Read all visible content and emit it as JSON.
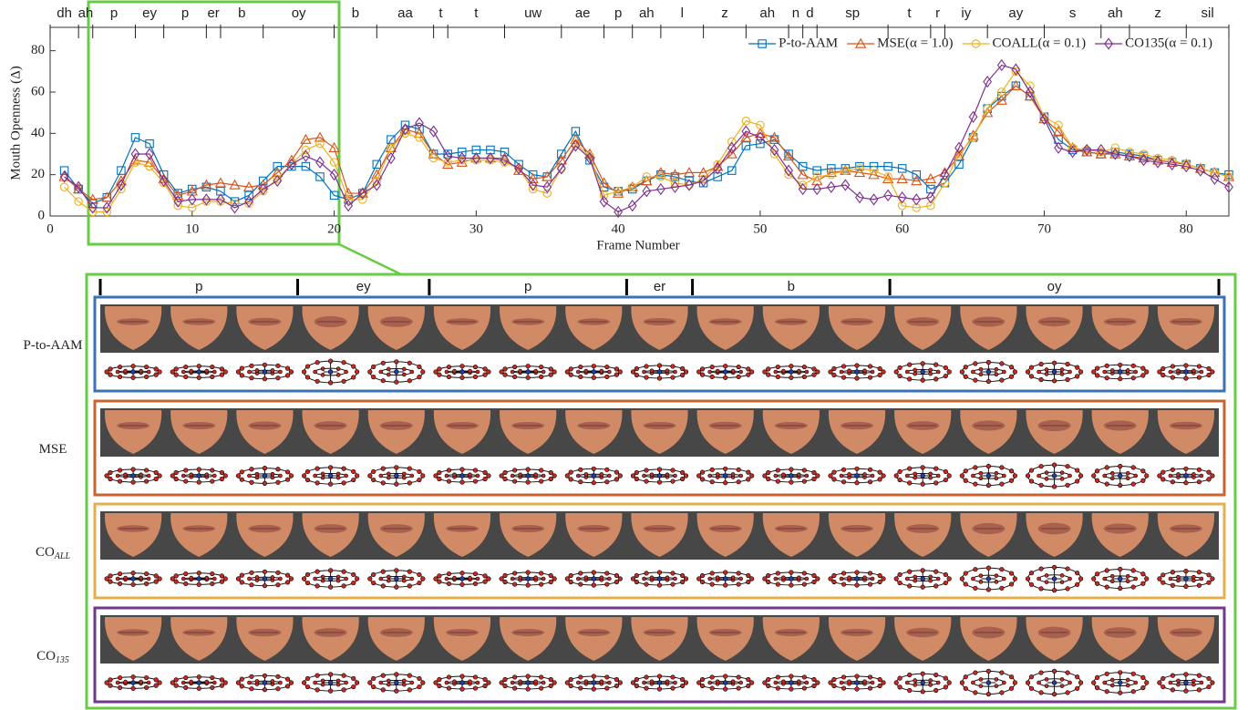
{
  "chart_data": {
    "type": "line",
    "xlabel": "Frame Number",
    "ylabel": "Mouth Openness (Δ)",
    "xlim": [
      0,
      83
    ],
    "xticks": [
      0,
      10,
      20,
      30,
      40,
      50,
      60,
      70,
      80
    ],
    "ylim": [
      0,
      90
    ],
    "yticks": [
      0,
      20,
      40,
      60,
      80
    ],
    "legend_loc": "upper right",
    "phonemes": [
      "dh",
      "ah",
      "p",
      "ey",
      "p",
      "er",
      "b",
      "oy",
      "b",
      "aa",
      "t",
      "t",
      "uw",
      "ae",
      "p",
      "ah",
      "l",
      "z",
      "ah",
      "n",
      "d",
      "sp",
      "t",
      "r",
      "iy",
      "ay",
      "s",
      "ah",
      "z",
      "sil"
    ],
    "phoneme_boundaries": [
      0,
      2,
      3,
      6,
      8,
      11,
      12,
      15,
      20,
      23,
      27,
      28,
      32,
      36,
      39,
      41,
      43,
      46,
      49,
      52,
      53,
      54,
      59,
      62,
      63,
      66,
      70,
      74,
      76,
      80,
      83
    ],
    "x": [
      1,
      2,
      3,
      4,
      5,
      6,
      7,
      8,
      9,
      10,
      11,
      12,
      13,
      14,
      15,
      16,
      17,
      18,
      19,
      20,
      21,
      22,
      23,
      24,
      25,
      26,
      27,
      28,
      29,
      30,
      31,
      32,
      33,
      34,
      35,
      36,
      37,
      38,
      39,
      40,
      41,
      42,
      43,
      44,
      45,
      46,
      47,
      48,
      49,
      50,
      51,
      52,
      53,
      54,
      55,
      56,
      57,
      58,
      59,
      60,
      61,
      62,
      63,
      64,
      65,
      66,
      67,
      68,
      69,
      70,
      71,
      72,
      73,
      74,
      75,
      76,
      77,
      78,
      79,
      80,
      81,
      82,
      83
    ],
    "series": [
      {
        "name": "P-to-AAM",
        "color": "#0072bd",
        "marker": "square",
        "values": [
          22,
          13,
          6,
          9,
          22,
          38,
          35,
          20,
          11,
          13,
          14,
          12,
          7,
          10,
          17,
          24,
          24,
          24,
          19,
          10,
          8,
          11,
          25,
          37,
          44,
          42,
          30,
          30,
          31,
          32,
          32,
          31,
          25,
          20,
          19,
          30,
          41,
          27,
          14,
          12,
          13,
          17,
          20,
          19,
          17,
          16,
          19,
          22,
          34,
          35,
          37,
          30,
          24,
          22,
          23,
          23,
          24,
          24,
          24,
          23,
          20,
          13,
          16,
          25,
          38,
          52,
          58,
          63,
          58,
          48,
          37,
          32,
          31,
          30,
          31,
          30,
          29,
          27,
          26,
          25,
          23,
          21,
          20
        ]
      },
      {
        "name": "MSE(α = 1.0)",
        "color": "#d95319",
        "marker": "triangle",
        "values": [
          19,
          13,
          8,
          9,
          17,
          27,
          26,
          18,
          10,
          12,
          15,
          16,
          15,
          14,
          15,
          21,
          27,
          37,
          38,
          33,
          11,
          11,
          20,
          33,
          42,
          40,
          30,
          25,
          26,
          28,
          28,
          28,
          22,
          18,
          19,
          27,
          37,
          30,
          16,
          11,
          14,
          17,
          21,
          20,
          21,
          21,
          24,
          30,
          38,
          40,
          38,
          29,
          20,
          17,
          21,
          22,
          21,
          20,
          18,
          18,
          17,
          18,
          21,
          29,
          39,
          50,
          56,
          63,
          58,
          47,
          41,
          33,
          31,
          30,
          30,
          29,
          28,
          27,
          26,
          25,
          23,
          21,
          19
        ]
      },
      {
        "name": "COALL(α = 0.1)",
        "color": "#edb120",
        "marker": "circle",
        "values": [
          14,
          7,
          2,
          2,
          13,
          26,
          24,
          16,
          5,
          4,
          7,
          7,
          6,
          6,
          12,
          18,
          25,
          32,
          35,
          26,
          8,
          8,
          17,
          33,
          40,
          38,
          28,
          26,
          27,
          27,
          27,
          26,
          23,
          13,
          11,
          23,
          35,
          29,
          10,
          12,
          14,
          19,
          19,
          16,
          15,
          18,
          25,
          36,
          46,
          44,
          30,
          20,
          15,
          19,
          20,
          22,
          23,
          22,
          19,
          5,
          4,
          5,
          16,
          30,
          38,
          52,
          60,
          70,
          63,
          48,
          44,
          33,
          32,
          31,
          33,
          31,
          30,
          28,
          27,
          25,
          23,
          21,
          19
        ]
      },
      {
        "name": "CO135(α = 0.1)",
        "color": "#7e2f8e",
        "marker": "diamond",
        "values": [
          19,
          14,
          4,
          4,
          15,
          30,
          30,
          17,
          7,
          8,
          8,
          8,
          4,
          7,
          13,
          17,
          25,
          29,
          26,
          20,
          5,
          11,
          15,
          28,
          42,
          45,
          41,
          29,
          28,
          28,
          28,
          27,
          23,
          15,
          14,
          23,
          34,
          28,
          7,
          2,
          5,
          12,
          13,
          14,
          15,
          17,
          23,
          33,
          41,
          38,
          32,
          22,
          13,
          13,
          14,
          15,
          9,
          8,
          10,
          9,
          8,
          9,
          20,
          33,
          48,
          65,
          73,
          71,
          60,
          47,
          33,
          31,
          32,
          32,
          30,
          29,
          27,
          26,
          25,
          24,
          22,
          18,
          14
        ]
      }
    ]
  },
  "zoom_panel": {
    "phonemes": [
      "p",
      "ey",
      "p",
      "er",
      "b",
      "oy"
    ],
    "frame_boundaries": [
      0,
      3,
      5,
      8,
      9,
      12,
      17
    ],
    "rows": [
      {
        "label": "P-to-AAM",
        "color": "#3a72b5"
      },
      {
        "label": "MSE",
        "color": "#c8622e"
      },
      {
        "label": "CO",
        "sub": "ALL",
        "color": "#e3b04c"
      },
      {
        "label": "CO",
        "sub": "135",
        "color": "#6f3a8e"
      }
    ]
  }
}
